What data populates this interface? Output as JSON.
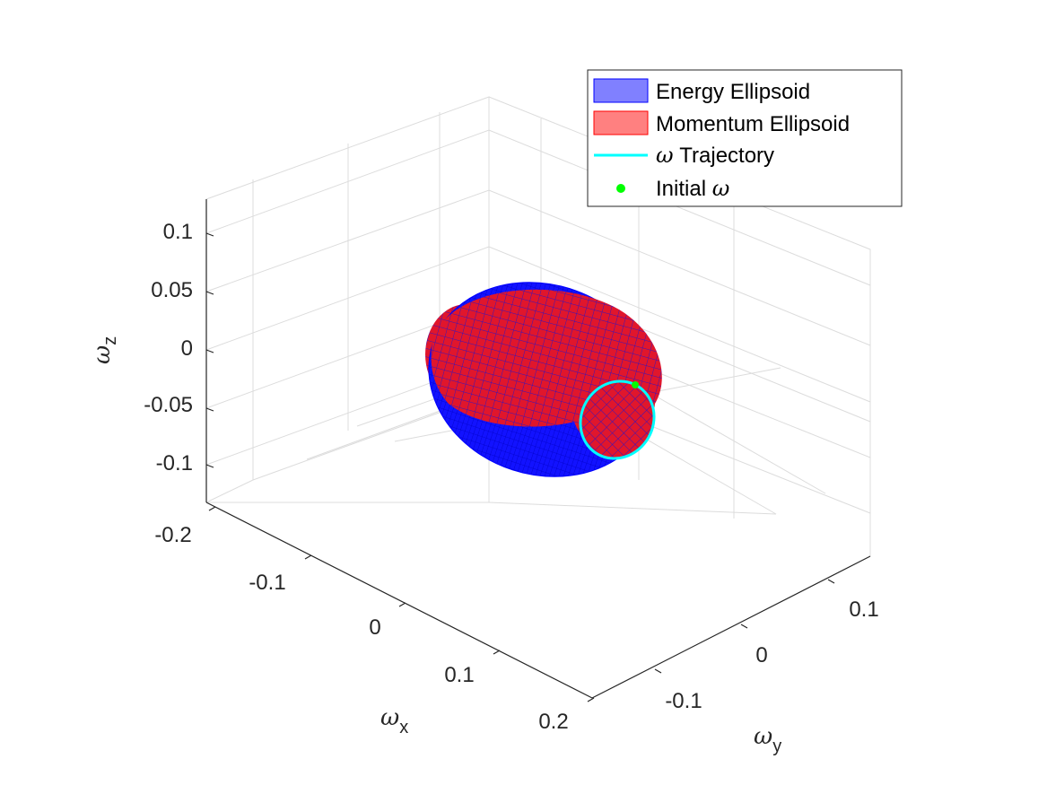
{
  "chart_data": {
    "type": "surface3d",
    "title": "",
    "xlabel": {
      "symbol": "ω",
      "sub": "x"
    },
    "ylabel": {
      "symbol": "ω",
      "sub": "y"
    },
    "zlabel": {
      "symbol": "ω",
      "sub": "z"
    },
    "xlim": [
      -0.2,
      0.2
    ],
    "ylim": [
      -0.15,
      0.15
    ],
    "zlim": [
      -0.13,
      0.13
    ],
    "x_ticks": [
      -0.2,
      -0.1,
      0,
      0.1,
      0.2
    ],
    "y_ticks": [
      -0.1,
      0,
      0.1
    ],
    "z_ticks": [
      -0.1,
      -0.05,
      0,
      0.05,
      0.1
    ],
    "x_tick_labels": [
      "-0.2",
      "-0.1",
      "0",
      "0.1",
      "0.2"
    ],
    "y_tick_labels": [
      "-0.1",
      "0",
      "0.1"
    ],
    "z_tick_labels": [
      "-0.1",
      "-0.05",
      "0",
      "0.05",
      "0.1"
    ],
    "grid": true,
    "legend_position": "top-right",
    "series": [
      {
        "name_prefix": "",
        "name": "Energy Ellipsoid",
        "kind": "surface",
        "color": "#0000ff",
        "fill": "#8080ff",
        "semi_axes": [
          0.112,
          0.102,
          0.088
        ]
      },
      {
        "name_prefix": "",
        "name": "Momentum Ellipsoid",
        "kind": "surface",
        "color": "#ff0000",
        "fill": "#ff8080",
        "semi_axes": [
          0.124,
          0.094,
          0.077
        ]
      },
      {
        "name_prefix": "ω",
        "name": " Trajectory",
        "kind": "line",
        "color": "#00ffff",
        "position": "closed loop around the +ωy side of the ellipsoids"
      },
      {
        "name_prefix": "",
        "name": "Initial ",
        "name_suffix": "ω",
        "kind": "point",
        "color": "#00ff00",
        "position": "on the trajectory loop"
      }
    ]
  }
}
